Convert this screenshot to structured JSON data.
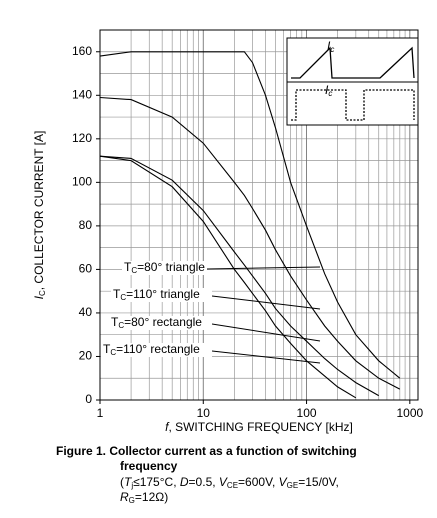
{
  "chart_data": {
    "type": "line",
    "y_label": {
      "symbol": "I",
      "sub": "C",
      "text": ", COLLECTOR CURRENT [A]"
    },
    "x_label": {
      "symbol": "f",
      "text": ", SWITCHING FREQUENCY [kHz]"
    },
    "log_x": true,
    "grid": true,
    "xlim": [
      1,
      1200
    ],
    "xticks": [
      1,
      10,
      100,
      1000
    ],
    "ylim": [
      0,
      170
    ],
    "yticks": [
      0,
      20,
      40,
      60,
      80,
      100,
      120,
      140,
      160
    ],
    "x": [
      1,
      2,
      5,
      10,
      20,
      25,
      30,
      40,
      50,
      70,
      100,
      150,
      200,
      300,
      500,
      800
    ],
    "series": [
      {
        "symbol": "T",
        "sub": "C",
        "name": "=80° triangle",
        "color": "#000000",
        "values": [
          158,
          160,
          160,
          160,
          160,
          160,
          155,
          140,
          125,
          100,
          80,
          58,
          45,
          30,
          18,
          10
        ]
      },
      {
        "symbol": "T",
        "sub": "C",
        "name": "=110° triangle",
        "color": "#000000",
        "values": [
          139,
          138,
          130,
          118,
          100,
          94,
          88,
          78,
          69,
          57,
          46,
          34,
          27,
          18,
          10,
          5
        ]
      },
      {
        "symbol": "T",
        "sub": "C",
        "name": "=80° rectangle",
        "color": "#000000",
        "values": [
          112,
          111,
          101,
          87,
          68,
          62,
          57,
          49,
          42,
          34,
          27,
          19,
          14,
          8,
          2,
          null
        ]
      },
      {
        "symbol": "T",
        "sub": "C",
        "name": "=110° rectangle",
        "color": "#000000",
        "values": [
          112,
          110,
          98,
          82,
          60,
          54,
          49,
          41,
          34,
          26,
          18,
          11,
          6,
          1,
          null,
          null
        ]
      }
    ],
    "inset": {
      "symbol": "I",
      "sub": "c"
    }
  },
  "caption": {
    "title": "Figure 1. Collector current as a function of switching",
    "title2": "frequency",
    "line1": [
      {
        "text": "(",
        "style": "normal"
      },
      {
        "text": "T",
        "style": "italic"
      },
      {
        "text": "j",
        "style": "sub"
      },
      {
        "text": "≤175°C, ",
        "style": "normal"
      },
      {
        "text": "D",
        "style": "italic"
      },
      {
        "text": "=0.5, ",
        "style": "normal"
      },
      {
        "text": "V",
        "style": "italic"
      },
      {
        "text": "CE",
        "style": "sub"
      },
      {
        "text": "=600V, ",
        "style": "normal"
      },
      {
        "text": "V",
        "style": "italic"
      },
      {
        "text": "GE",
        "style": "sub"
      },
      {
        "text": "=15/0V,",
        "style": "normal"
      }
    ],
    "line2": [
      {
        "text": "R",
        "style": "italic"
      },
      {
        "text": "G",
        "style": "sub"
      },
      {
        "text": "=12Ω)",
        "style": "normal"
      }
    ]
  }
}
